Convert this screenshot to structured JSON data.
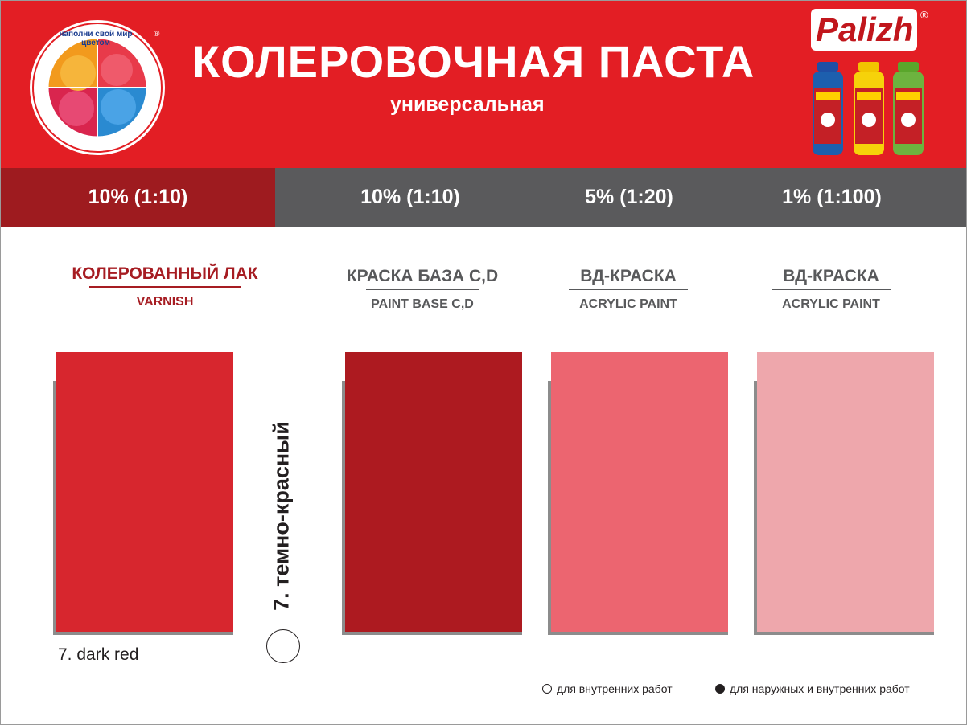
{
  "header": {
    "title": "КОЛЕРОВОЧНАЯ ПАСТА",
    "subtitle": "универсальная",
    "logo_slogan": "наполни свой мир цветом",
    "brand": "Palizh",
    "registered_mark": "®",
    "colors": {
      "header_bg": "#e31e24",
      "ratio_bar": "#5a5a5c",
      "ratio_active": "#9e1b1f"
    }
  },
  "ratios": [
    {
      "label": "10% (1:10)",
      "active": true
    },
    {
      "label": "10% (1:10)",
      "active": false
    },
    {
      "label": "5% (1:20)",
      "active": false
    },
    {
      "label": "1% (1:100)",
      "active": false
    }
  ],
  "columns": [
    {
      "title": "КОЛЕРОВАННЫЙ ЛАК",
      "subtitle": "VARNISH",
      "swatch_color": "#d7262e"
    },
    {
      "title": "КРАСКА БАЗА C,D",
      "subtitle": "PAINT BASE C,D",
      "swatch_color": "#ad1a20"
    },
    {
      "title": "ВД-КРАСКА",
      "subtitle": "ACRYLIC PAINT",
      "swatch_color": "#ec6570"
    },
    {
      "title": "ВД-КРАСКА",
      "subtitle": "ACRYLIC PAINT",
      "swatch_color": "#eea7ac"
    }
  ],
  "color_name": {
    "ru": "7. темно-красный",
    "en": "7. dark red"
  },
  "legend": {
    "interior": "для внутренних работ",
    "exterior_interior": "для наружных и внутренних работ"
  }
}
